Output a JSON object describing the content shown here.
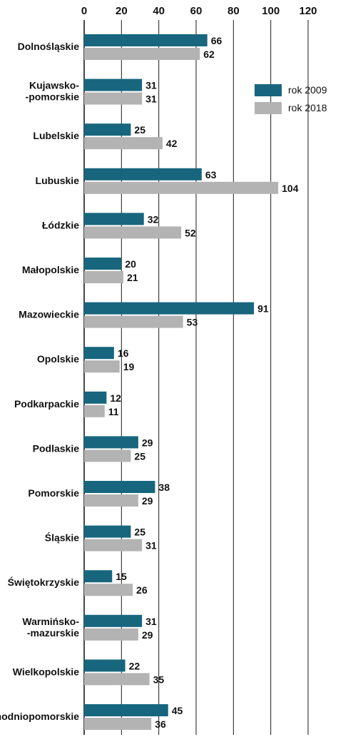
{
  "chart_data": {
    "type": "bar",
    "orientation": "horizontal",
    "title": "",
    "xlabel": "",
    "ylabel": "",
    "xlim": [
      0,
      120
    ],
    "xticks": [
      0,
      20,
      40,
      60,
      80,
      100,
      120
    ],
    "tick_labels": [
      "0",
      "20",
      "40",
      "60",
      "80",
      "100",
      "120"
    ],
    "grid": true,
    "legend_position": "top-right",
    "categories": [
      [
        "Dolnośląskie"
      ],
      [
        "Kujawsko-",
        "-pomorskie"
      ],
      [
        "Lubelskie"
      ],
      [
        "Lubuskie"
      ],
      [
        "Łódzkie"
      ],
      [
        "Małopolskie"
      ],
      [
        "Mazowieckie"
      ],
      [
        "Opolskie"
      ],
      [
        "Podkarpackie"
      ],
      [
        "Podlaskie"
      ],
      [
        "Pomorskie"
      ],
      [
        "Śląskie"
      ],
      [
        "Świętokrzyskie"
      ],
      [
        "Warmińsko-",
        "-mazurskie"
      ],
      [
        "Wielkopolskie"
      ],
      [
        "Zachodniopomorskie"
      ]
    ],
    "series": [
      {
        "name": "rok 2009",
        "color": "#17667e",
        "values": [
          66,
          31,
          25,
          63,
          32,
          20,
          91,
          16,
          12,
          29,
          38,
          25,
          15,
          31,
          22,
          45
        ]
      },
      {
        "name": "rok 2018",
        "color": "#b3b3b3",
        "values": [
          62,
          31,
          42,
          104,
          52,
          21,
          53,
          19,
          11,
          25,
          29,
          31,
          26,
          29,
          35,
          36
        ]
      }
    ]
  }
}
